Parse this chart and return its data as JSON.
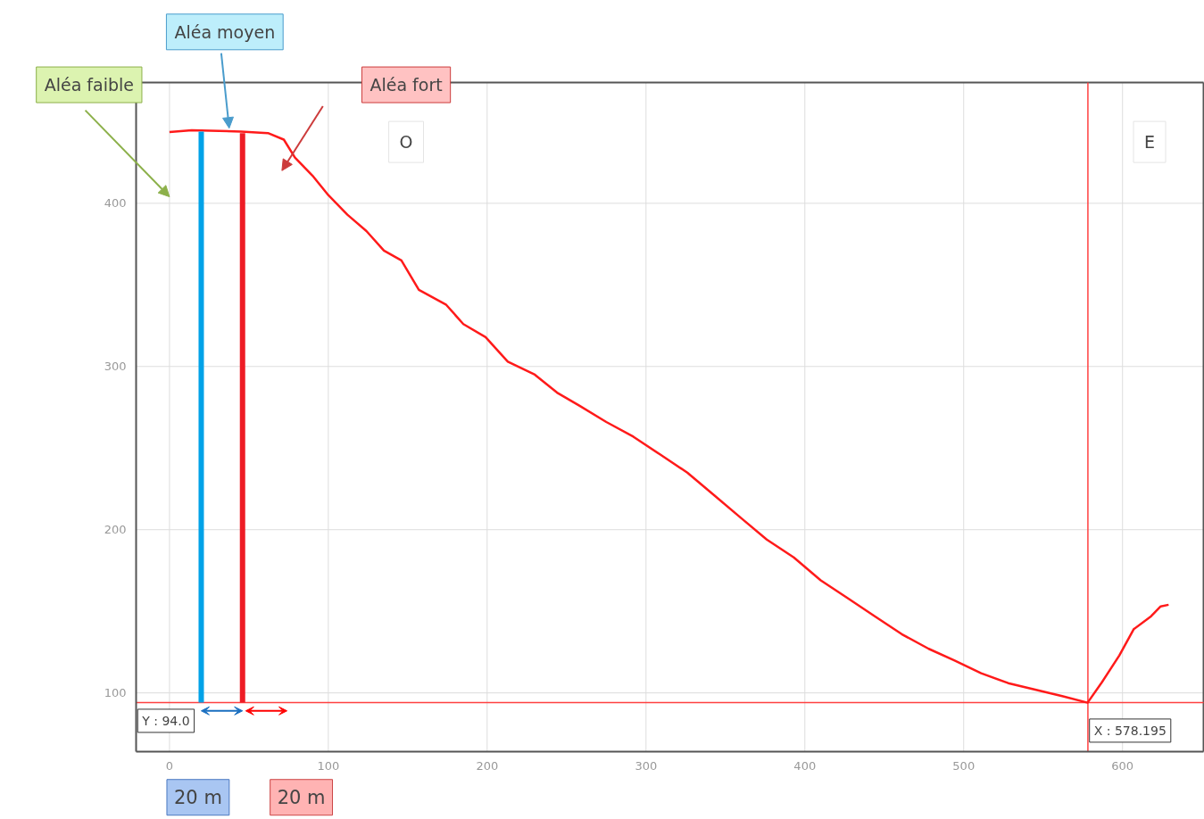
{
  "chart_data": {
    "type": "line",
    "xlim": [
      -21,
      651
    ],
    "ylim": [
      64,
      474
    ],
    "xticks": [
      0,
      100,
      200,
      300,
      400,
      500,
      600
    ],
    "yticks": [
      100,
      200,
      300,
      400
    ],
    "grid": true,
    "line_style": "solid",
    "marker": "none",
    "series": [
      {
        "color": "#ff1a1a",
        "x": [
          0,
          14,
          45,
          62,
          72,
          79,
          90,
          100,
          112,
          124,
          135,
          146,
          157,
          174,
          185,
          199,
          213,
          230,
          244,
          258,
          275,
          292,
          309,
          326,
          343,
          360,
          376,
          393,
          410,
          427,
          444,
          461,
          478,
          494,
          511,
          528,
          545,
          562,
          578,
          587,
          598,
          607,
          618,
          624,
          629
        ],
        "values": [
          443.6,
          444.7,
          444,
          443,
          439,
          428,
          417,
          405,
          393,
          383,
          371,
          365,
          347,
          338,
          326,
          318,
          303,
          295,
          284,
          276,
          266,
          257,
          246,
          235,
          221,
          207,
          194,
          183,
          169,
          158,
          147,
          136,
          127,
          120,
          112,
          106,
          102,
          98,
          94,
          106.5,
          123,
          139,
          147,
          153,
          154
        ]
      },
      {
        "color": "#00a2e8",
        "x": [
          20,
          20
        ],
        "values": [
          94,
          444
        ]
      },
      {
        "color": "#ee1c25",
        "x": [
          46,
          46
        ],
        "values": [
          94,
          443
        ]
      }
    ],
    "ref_lines": [
      {
        "axis": "y",
        "value": 94,
        "label": "Y : 94.0",
        "color": "#ff4040"
      },
      {
        "axis": "x",
        "value": 578.195,
        "label": "X : 578.195",
        "color": "#ff4040"
      }
    ],
    "annotations": [
      "Aléa faible",
      {
        "text": "Aléa moyen",
        "x": 37.6,
        "y": 446
      },
      "Aléa fort",
      "O",
      "E",
      "20 m",
      "20 m"
    ]
  }
}
